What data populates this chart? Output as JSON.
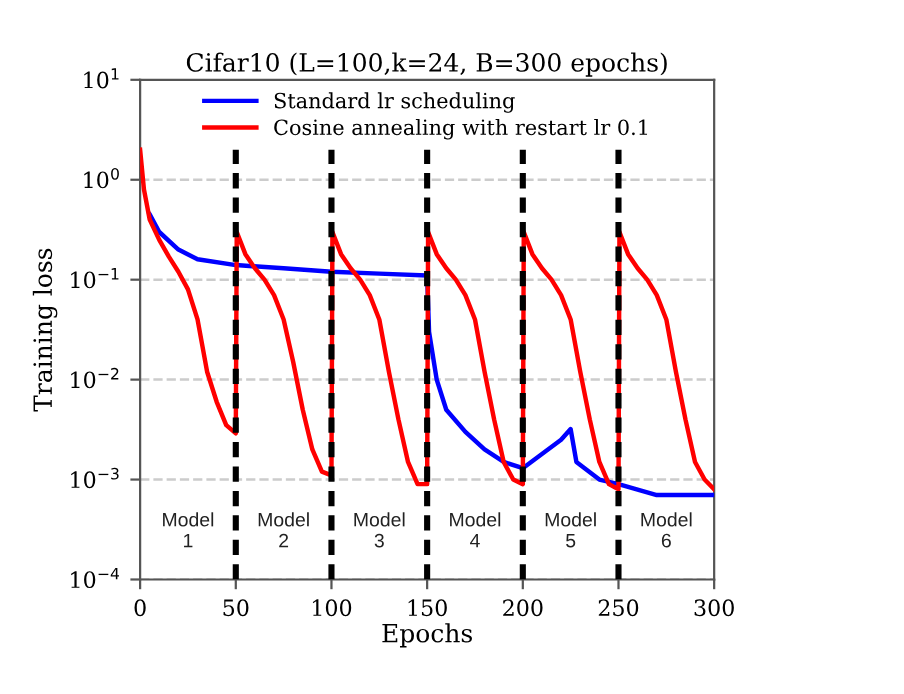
{
  "chart_data": {
    "type": "line",
    "title": "Cifar10 (L=100,k=24, B=300 epochs)",
    "xlabel": "Epochs",
    "ylabel": "Training loss",
    "log": "y",
    "grid": "y",
    "legend": "top",
    "line_style": "solid",
    "marker": "none",
    "xlim": [
      0,
      300
    ],
    "xticks": [
      0,
      50,
      100,
      150,
      200,
      250,
      300
    ],
    "ylim": [
      0.0001,
      10
    ],
    "yticks": [
      {
        "value": 0.0001,
        "label": "10$^{−4}$"
      },
      {
        "value": 0.001,
        "label": "10$^{−3}$"
      },
      {
        "value": 0.01,
        "label": "10$^{−2}$"
      },
      {
        "value": 0.1,
        "label": "10$^{−1}$"
      },
      {
        "value": 1,
        "label": "10$^{0}$"
      },
      {
        "value": 10,
        "label": "10$^{1}$"
      }
    ],
    "series": [
      {
        "name": "Standard lr scheduling",
        "color": "#0000ff",
        "x": [
          5,
          10,
          20,
          30,
          50,
          75,
          100,
          125,
          150,
          151,
          155,
          160,
          170,
          180,
          190,
          200,
          210,
          220,
          225,
          228,
          240,
          250,
          270,
          300
        ],
        "values": [
          0.45,
          0.3,
          0.2,
          0.16,
          0.14,
          0.13,
          0.12,
          0.115,
          0.11,
          0.03,
          0.01,
          0.005,
          0.003,
          0.002,
          0.0015,
          0.0013,
          0.0018,
          0.0025,
          0.0032,
          0.0015,
          0.001,
          0.0009,
          0.0007,
          0.0007
        ]
      },
      {
        "name": "Cosine annealing with restart lr 0.1",
        "color": "#ff0000",
        "x": [
          0,
          2,
          5,
          10,
          15,
          20,
          25,
          30,
          35,
          40,
          45,
          50,
          50.5,
          55,
          60,
          65,
          70,
          75,
          80,
          85,
          90,
          95,
          100,
          100.5,
          105,
          110,
          115,
          120,
          125,
          130,
          135,
          140,
          145,
          150,
          150.5,
          155,
          160,
          165,
          170,
          175,
          180,
          185,
          190,
          195,
          200,
          200.5,
          205,
          210,
          215,
          220,
          225,
          230,
          235,
          240,
          245,
          250,
          250.5,
          255,
          260,
          265,
          270,
          275,
          280,
          285,
          290,
          295,
          300
        ],
        "values": [
          2,
          0.8,
          0.4,
          0.25,
          0.17,
          0.12,
          0.08,
          0.04,
          0.012,
          0.006,
          0.0035,
          0.0029,
          0.3,
          0.18,
          0.13,
          0.1,
          0.07,
          0.04,
          0.015,
          0.005,
          0.002,
          0.0012,
          0.0011,
          0.3,
          0.18,
          0.13,
          0.1,
          0.07,
          0.04,
          0.012,
          0.004,
          0.0015,
          0.0009,
          0.0009,
          0.3,
          0.18,
          0.13,
          0.1,
          0.07,
          0.04,
          0.012,
          0.004,
          0.0015,
          0.001,
          0.0009,
          0.3,
          0.18,
          0.13,
          0.1,
          0.07,
          0.04,
          0.012,
          0.004,
          0.0015,
          0.0009,
          0.0008,
          0.3,
          0.18,
          0.13,
          0.1,
          0.07,
          0.04,
          0.012,
          0.004,
          0.0015,
          0.001,
          0.0008
        ]
      }
    ],
    "ref_lines": [
      {
        "axis": "x",
        "value": 50,
        "color": "#000000",
        "line_style": "dashed"
      },
      {
        "axis": "x",
        "value": 100,
        "color": "#000000",
        "line_style": "dashed"
      },
      {
        "axis": "x",
        "value": 150,
        "color": "#000000",
        "line_style": "dashed"
      },
      {
        "axis": "x",
        "value": 200,
        "color": "#000000",
        "line_style": "dashed"
      },
      {
        "axis": "x",
        "value": 250,
        "color": "#000000",
        "line_style": "dashed"
      }
    ],
    "annotations": [
      {
        "text": "Model\n1",
        "x": 25,
        "y": 0.0003
      },
      {
        "text": "Model\n2",
        "x": 75,
        "y": 0.0003
      },
      {
        "text": "Model\n3",
        "x": 125,
        "y": 0.0003
      },
      {
        "text": "Model\n4",
        "x": 175,
        "y": 0.0003
      },
      {
        "text": "Model\n5",
        "x": 225,
        "y": 0.0003
      },
      {
        "text": "Model\n6",
        "x": 275,
        "y": 0.0003
      }
    ]
  }
}
